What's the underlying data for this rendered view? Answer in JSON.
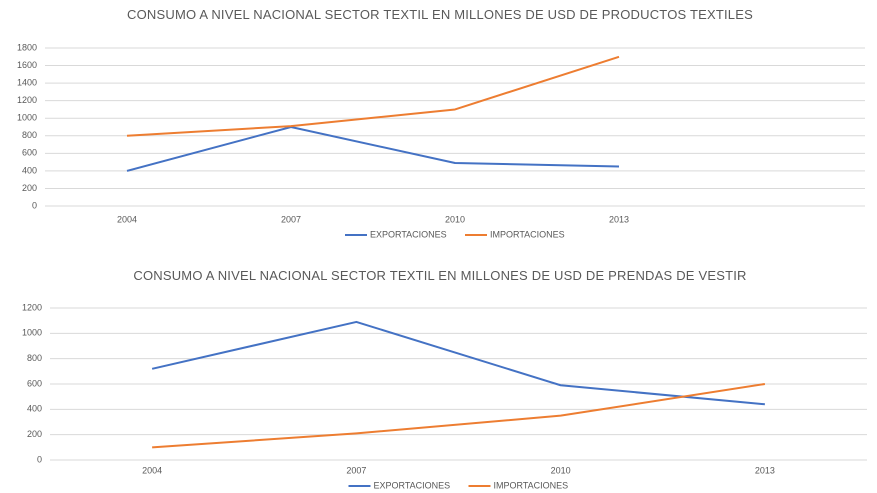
{
  "chart_data": [
    {
      "type": "line",
      "title": "CONSUMO A NIVEL NACIONAL SECTOR TEXTIL EN MILLONES DE USD DE PRODUCTOS TEXTILES",
      "categories": [
        "2004",
        "2007",
        "2010",
        "2013",
        null
      ],
      "series": [
        {
          "name": "EXPORTACIONES",
          "color": "#4472c4",
          "values": [
            400,
            900,
            490,
            450,
            null
          ]
        },
        {
          "name": "IMPORTACIONES",
          "color": "#ed7d31",
          "values": [
            800,
            910,
            1100,
            1700,
            null
          ]
        }
      ],
      "ylim": [
        0,
        1800
      ],
      "yticks": [
        0,
        200,
        400,
        600,
        800,
        1000,
        1200,
        1400,
        1600,
        1800
      ],
      "grid": true,
      "legend": "bottom"
    },
    {
      "type": "line",
      "title": "CONSUMO A NIVEL NACIONAL SECTOR TEXTIL EN MILLONES DE USD DE PRENDAS DE VESTIR",
      "categories": [
        "2004",
        "2007",
        "2010",
        "2013"
      ],
      "series": [
        {
          "name": "EXPORTACIONES",
          "color": "#4472c4",
          "values": [
            720,
            1090,
            590,
            440
          ]
        },
        {
          "name": "IMPORTACIONES",
          "color": "#ed7d31",
          "values": [
            100,
            210,
            350,
            600
          ]
        }
      ],
      "ylim": [
        0,
        1200
      ],
      "yticks": [
        0,
        200,
        400,
        600,
        800,
        1000,
        1200
      ],
      "grid": true,
      "legend": "bottom"
    }
  ]
}
